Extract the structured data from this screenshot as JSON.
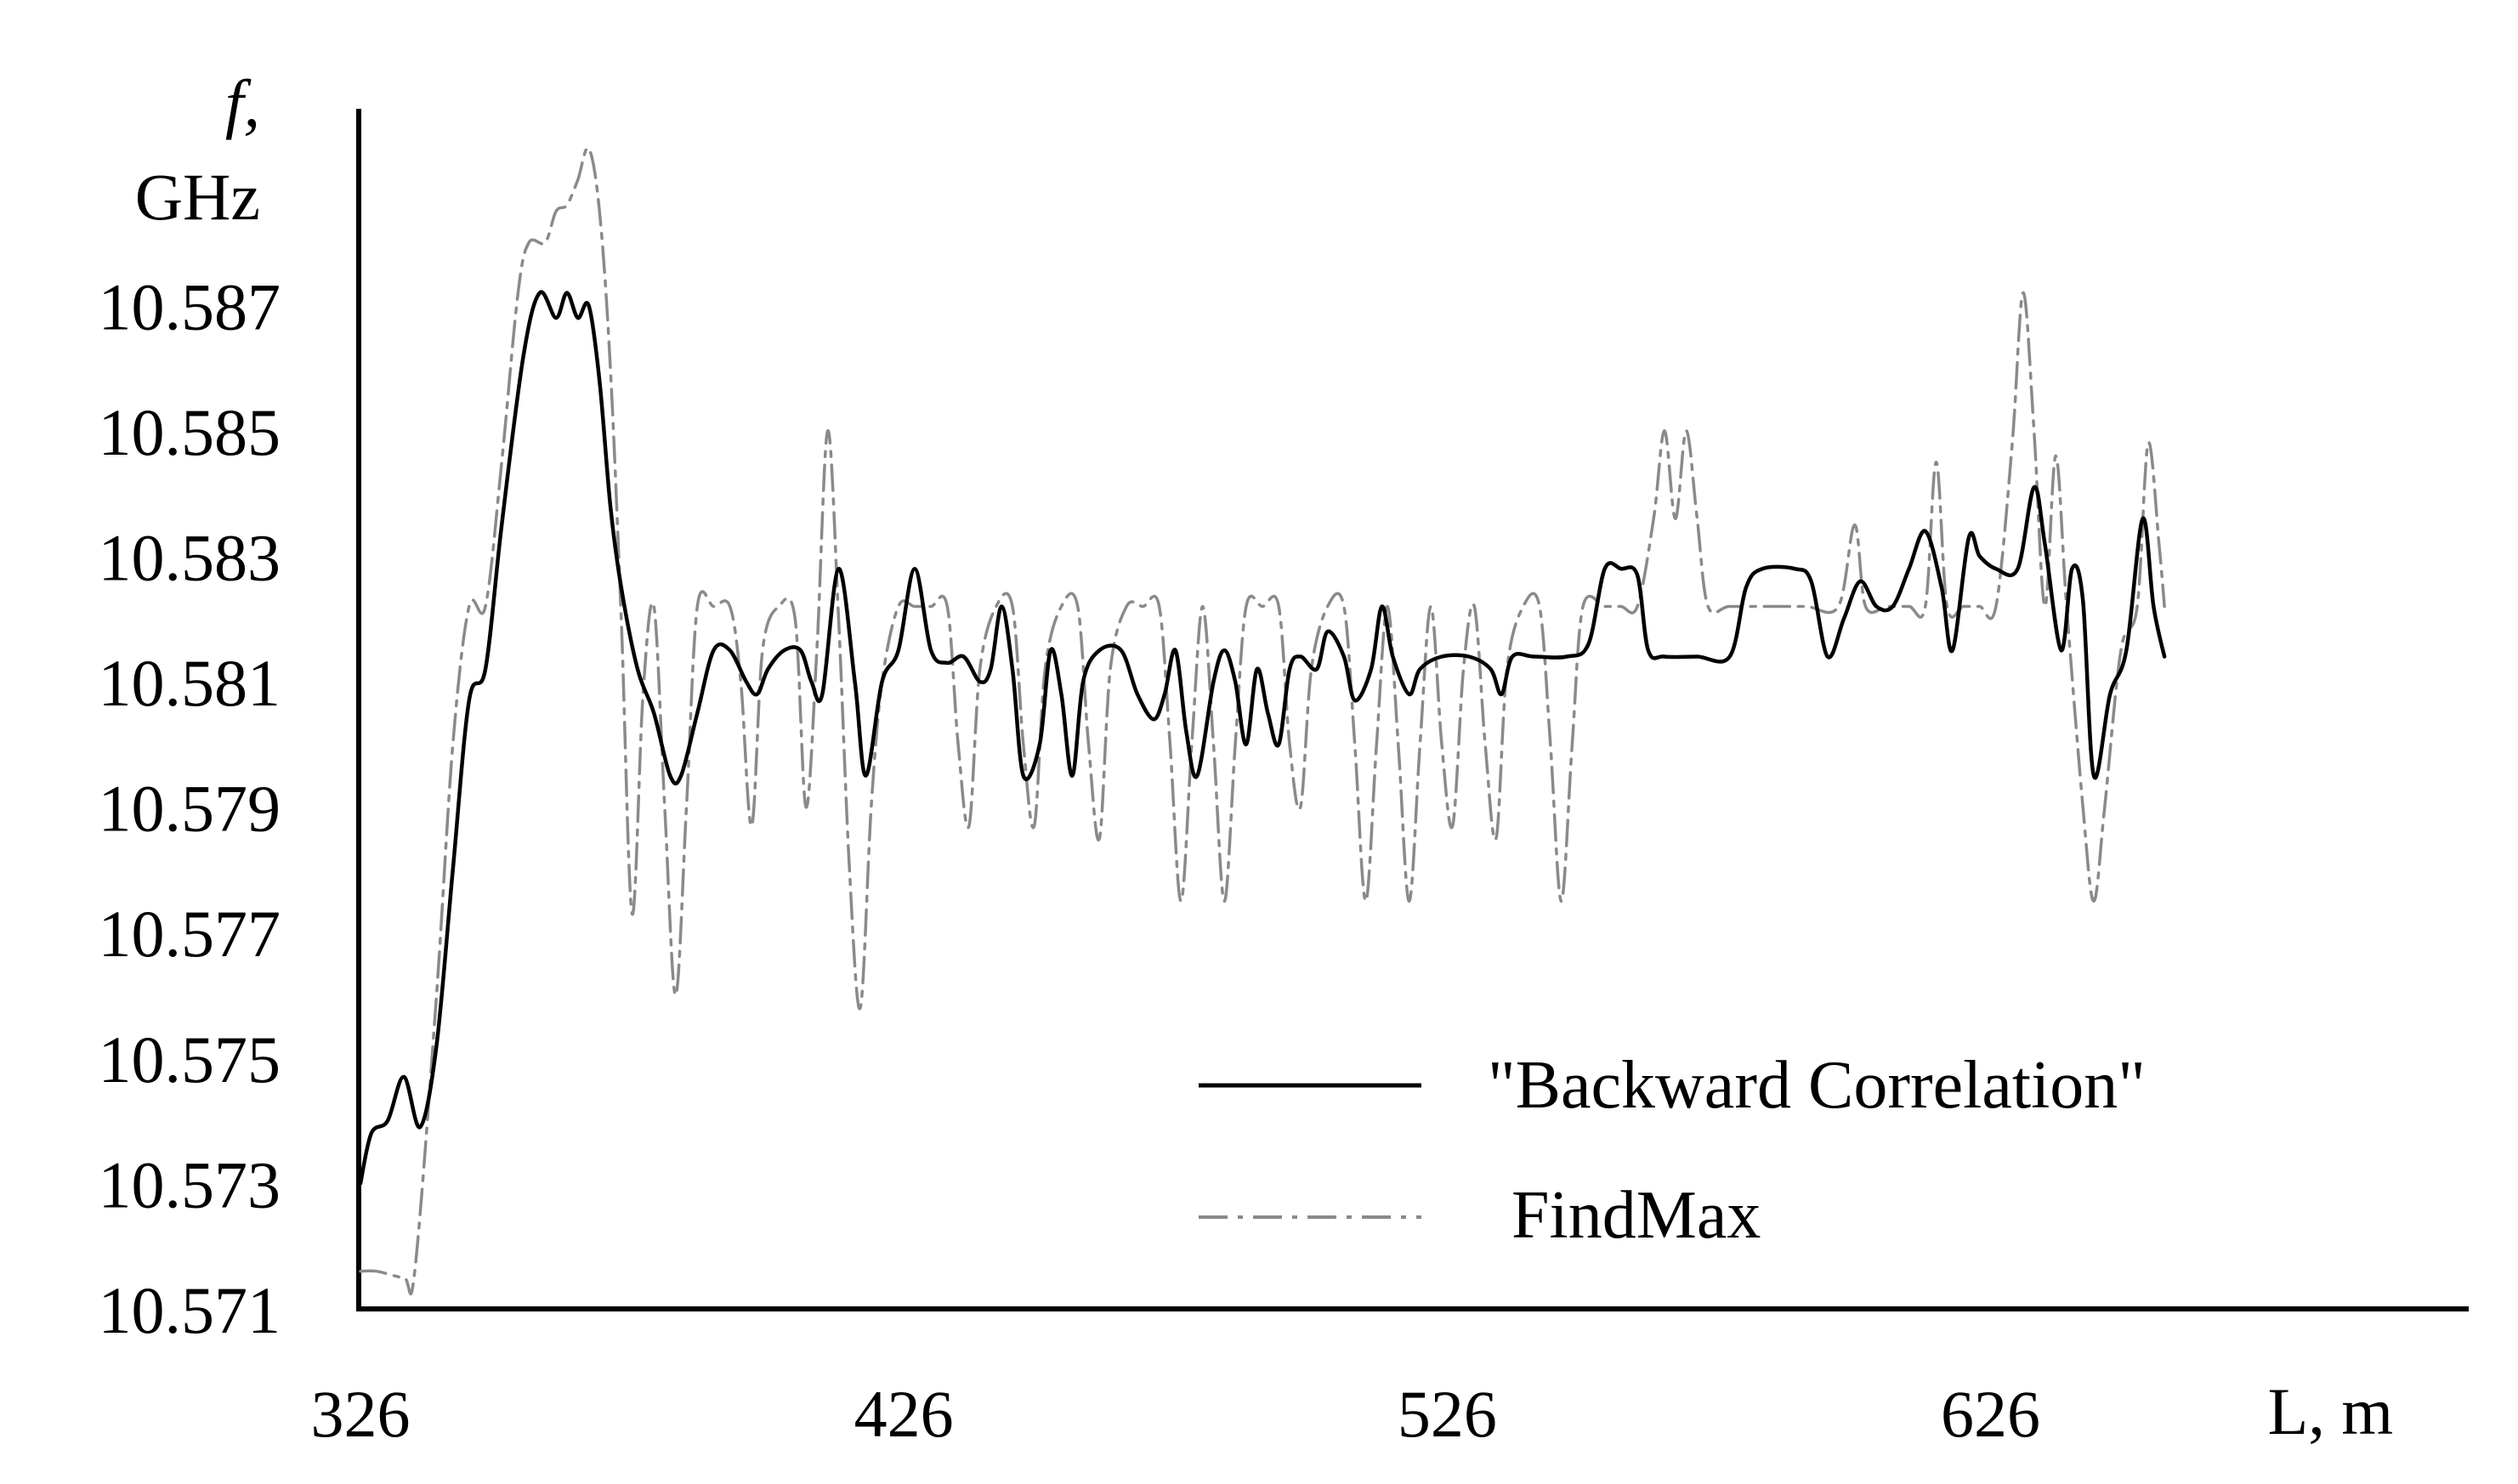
{
  "chart_data": {
    "type": "line",
    "title": "",
    "ylabel_symbol": "f,",
    "ylabel_unit": "GHz",
    "xlabel": "L, m",
    "xlim": [
      326,
      714
    ],
    "ylim": [
      10.571,
      10.5897
    ],
    "x_ticks": [
      326,
      426,
      526,
      626
    ],
    "x_tick_labels": [
      "326",
      "426",
      "526",
      "626"
    ],
    "y_ticks": [
      10.571,
      10.573,
      10.575,
      10.577,
      10.579,
      10.581,
      10.583,
      10.585,
      10.587
    ],
    "y_tick_labels": [
      "10.571",
      "10.573",
      "10.575",
      "10.577",
      "10.579",
      "10.581",
      "10.583",
      "10.585",
      "10.587"
    ],
    "grid": false,
    "legend_position": "bottom-right",
    "series": [
      {
        "name": "\"Backward Correlation\"",
        "style": "solid",
        "color": "#000000",
        "points": [
          [
            326,
            10.573
          ],
          [
            328,
            10.5738
          ],
          [
            331,
            10.574
          ],
          [
            334,
            10.5747
          ],
          [
            337,
            10.5739
          ],
          [
            340,
            10.5752
          ],
          [
            343,
            10.578
          ],
          [
            346,
            10.5807
          ],
          [
            349,
            10.5812
          ],
          [
            352,
            10.5835
          ],
          [
            356,
            10.5862
          ],
          [
            359,
            10.5872
          ],
          [
            362,
            10.5868
          ],
          [
            364,
            10.5872
          ],
          [
            366,
            10.5868
          ],
          [
            368,
            10.587
          ],
          [
            370,
            10.5858
          ],
          [
            372,
            10.5838
          ],
          [
            374,
            10.5825
          ],
          [
            377,
            10.5812
          ],
          [
            380,
            10.5805
          ],
          [
            383,
            10.5795
          ],
          [
            385,
            10.5795
          ],
          [
            388,
            10.5805
          ],
          [
            391,
            10.5815
          ],
          [
            394,
            10.5815
          ],
          [
            397,
            10.581
          ],
          [
            399,
            10.5808
          ],
          [
            401,
            10.5812
          ],
          [
            404,
            10.5815
          ],
          [
            407,
            10.5815
          ],
          [
            409,
            10.581
          ],
          [
            411,
            10.5808
          ],
          [
            414,
            10.5828
          ],
          [
            417,
            10.581
          ],
          [
            419,
            10.5795
          ],
          [
            422,
            10.581
          ],
          [
            425,
            10.5815
          ],
          [
            428,
            10.5828
          ],
          [
            431,
            10.5815
          ],
          [
            434,
            10.5813
          ],
          [
            437,
            10.5814
          ],
          [
            440,
            10.581
          ],
          [
            442,
            10.5812
          ],
          [
            444,
            10.5822
          ],
          [
            446,
            10.5812
          ],
          [
            448,
            10.5795
          ],
          [
            451,
            10.58
          ],
          [
            453,
            10.5815
          ],
          [
            455,
            10.5808
          ],
          [
            457,
            10.5795
          ],
          [
            459,
            10.581
          ],
          [
            462,
            10.5815
          ],
          [
            466,
            10.5815
          ],
          [
            469,
            10.5808
          ],
          [
            472,
            10.5804
          ],
          [
            474,
            10.5808
          ],
          [
            476,
            10.5815
          ],
          [
            478,
            10.5802
          ],
          [
            480,
            10.5795
          ],
          [
            483,
            10.581
          ],
          [
            485,
            10.5815
          ],
          [
            487,
            10.581
          ],
          [
            489,
            10.58
          ],
          [
            491,
            10.5812
          ],
          [
            493,
            10.5805
          ],
          [
            495,
            10.58
          ],
          [
            497,
            10.5812
          ],
          [
            499,
            10.5814
          ],
          [
            502,
            10.5812
          ],
          [
            504,
            10.5818
          ],
          [
            507,
            10.5814
          ],
          [
            509,
            10.5807
          ],
          [
            512,
            10.5812
          ],
          [
            514,
            10.5822
          ],
          [
            516,
            10.5814
          ],
          [
            519,
            10.5808
          ],
          [
            521,
            10.5812
          ],
          [
            525,
            10.5814
          ],
          [
            530,
            10.5814
          ],
          [
            534,
            10.5812
          ],
          [
            536,
            10.5808
          ],
          [
            538,
            10.5814
          ],
          [
            542,
            10.5814
          ],
          [
            548,
            10.5814
          ],
          [
            552,
            10.5816
          ],
          [
            555,
            10.5828
          ],
          [
            558,
            10.5828
          ],
          [
            561,
            10.5827
          ],
          [
            563,
            10.5815
          ],
          [
            566,
            10.5814
          ],
          [
            572,
            10.5814
          ],
          [
            578,
            10.5814
          ],
          [
            581,
            10.5825
          ],
          [
            584,
            10.5828
          ],
          [
            590,
            10.5828
          ],
          [
            593,
            10.5826
          ],
          [
            596,
            10.5814
          ],
          [
            599,
            10.582
          ],
          [
            602,
            10.5826
          ],
          [
            605,
            10.5822
          ],
          [
            608,
            10.5822
          ],
          [
            611,
            10.5828
          ],
          [
            614,
            10.5834
          ],
          [
            617,
            10.5825
          ],
          [
            619,
            10.5815
          ],
          [
            622,
            10.5833
          ],
          [
            624,
            10.583
          ],
          [
            627,
            10.5828
          ],
          [
            631,
            10.5828
          ],
          [
            634,
            10.5841
          ],
          [
            636,
            10.5832
          ],
          [
            639,
            10.5815
          ],
          [
            641,
            10.5828
          ],
          [
            643,
            10.5823
          ],
          [
            645,
            10.5795
          ],
          [
            648,
            10.5808
          ],
          [
            651,
            10.5815
          ],
          [
            654,
            10.5836
          ],
          [
            656,
            10.5822
          ],
          [
            658,
            10.5814
          ]
        ]
      },
      {
        "name": "FindMax",
        "style": "dash-dot",
        "color": "#8a8a8a",
        "points": [
          [
            326,
            10.5716
          ],
          [
            329,
            10.5716
          ],
          [
            334,
            10.5715
          ],
          [
            336,
            10.5716
          ],
          [
            340,
            10.576
          ],
          [
            343,
            10.58
          ],
          [
            346,
            10.5822
          ],
          [
            349,
            10.5822
          ],
          [
            352,
            10.5845
          ],
          [
            355,
            10.5872
          ],
          [
            357,
            10.588
          ],
          [
            360,
            10.588
          ],
          [
            362,
            10.5885
          ],
          [
            364,
            10.5886
          ],
          [
            366,
            10.589
          ],
          [
            368,
            10.5895
          ],
          [
            370,
            10.5885
          ],
          [
            372,
            10.586
          ],
          [
            374,
            10.582
          ],
          [
            376,
            10.5773
          ],
          [
            378,
            10.5808
          ],
          [
            380,
            10.5822
          ],
          [
            382,
            10.579
          ],
          [
            384,
            10.576
          ],
          [
            386,
            10.579
          ],
          [
            388,
            10.5822
          ],
          [
            391,
            10.5822
          ],
          [
            394,
            10.5822
          ],
          [
            396,
            10.581
          ],
          [
            398,
            10.5787
          ],
          [
            400,
            10.5815
          ],
          [
            403,
            10.5822
          ],
          [
            406,
            10.582
          ],
          [
            408,
            10.579
          ],
          [
            410,
            10.5815
          ],
          [
            412,
            10.585
          ],
          [
            414,
            10.582
          ],
          [
            416,
            10.578
          ],
          [
            418,
            10.5758
          ],
          [
            420,
            10.579
          ],
          [
            422,
            10.581
          ],
          [
            425,
            10.5822
          ],
          [
            428,
            10.5822
          ],
          [
            431,
            10.5822
          ],
          [
            434,
            10.5822
          ],
          [
            436,
            10.58
          ],
          [
            438,
            10.5787
          ],
          [
            440,
            10.5812
          ],
          [
            443,
            10.5822
          ],
          [
            446,
            10.5822
          ],
          [
            448,
            10.58
          ],
          [
            450,
            10.5787
          ],
          [
            452,
            10.5812
          ],
          [
            455,
            10.5822
          ],
          [
            458,
            10.5822
          ],
          [
            460,
            10.58
          ],
          [
            462,
            10.5785
          ],
          [
            464,
            10.5812
          ],
          [
            467,
            10.5822
          ],
          [
            470,
            10.5822
          ],
          [
            473,
            10.5822
          ],
          [
            475,
            10.58
          ],
          [
            477,
            10.5775
          ],
          [
            479,
            10.58
          ],
          [
            481,
            10.5822
          ],
          [
            483,
            10.58
          ],
          [
            485,
            10.5775
          ],
          [
            487,
            10.58
          ],
          [
            489,
            10.5822
          ],
          [
            492,
            10.5822
          ],
          [
            495,
            10.5822
          ],
          [
            497,
            10.58
          ],
          [
            499,
            10.579
          ],
          [
            501,
            10.5812
          ],
          [
            504,
            10.5822
          ],
          [
            507,
            10.5822
          ],
          [
            509,
            10.58
          ],
          [
            511,
            10.5775
          ],
          [
            513,
            10.58
          ],
          [
            515,
            10.5822
          ],
          [
            517,
            10.58
          ],
          [
            519,
            10.5775
          ],
          [
            521,
            10.58
          ],
          [
            523,
            10.5822
          ],
          [
            525,
            10.58
          ],
          [
            527,
            10.5787
          ],
          [
            529,
            10.5812
          ],
          [
            531,
            10.5822
          ],
          [
            533,
            10.58
          ],
          [
            535,
            10.5785
          ],
          [
            537,
            10.5812
          ],
          [
            540,
            10.5822
          ],
          [
            543,
            10.5822
          ],
          [
            545,
            10.58
          ],
          [
            547,
            10.5775
          ],
          [
            549,
            10.58
          ],
          [
            551,
            10.5822
          ],
          [
            555,
            10.5822
          ],
          [
            558,
            10.5822
          ],
          [
            561,
            10.5822
          ],
          [
            564,
            10.5836
          ],
          [
            566,
            10.585
          ],
          [
            568,
            10.5836
          ],
          [
            570,
            10.585
          ],
          [
            572,
            10.5836
          ],
          [
            574,
            10.5822
          ],
          [
            578,
            10.5822
          ],
          [
            585,
            10.5822
          ],
          [
            592,
            10.5822
          ],
          [
            598,
            10.5822
          ],
          [
            601,
            10.5835
          ],
          [
            603,
            10.5822
          ],
          [
            607,
            10.5822
          ],
          [
            611,
            10.5822
          ],
          [
            614,
            10.5822
          ],
          [
            616,
            10.5845
          ],
          [
            618,
            10.5822
          ],
          [
            621,
            10.5822
          ],
          [
            624,
            10.5822
          ],
          [
            627,
            10.5822
          ],
          [
            630,
            10.5848
          ],
          [
            632,
            10.5872
          ],
          [
            634,
            10.585
          ],
          [
            636,
            10.5822
          ],
          [
            638,
            10.5846
          ],
          [
            640,
            10.5822
          ],
          [
            643,
            10.579
          ],
          [
            645,
            10.5775
          ],
          [
            647,
            10.579
          ],
          [
            650,
            10.5815
          ],
          [
            653,
            10.5822
          ],
          [
            655,
            10.5848
          ],
          [
            657,
            10.5832
          ],
          [
            658,
            10.5822
          ]
        ]
      }
    ]
  }
}
